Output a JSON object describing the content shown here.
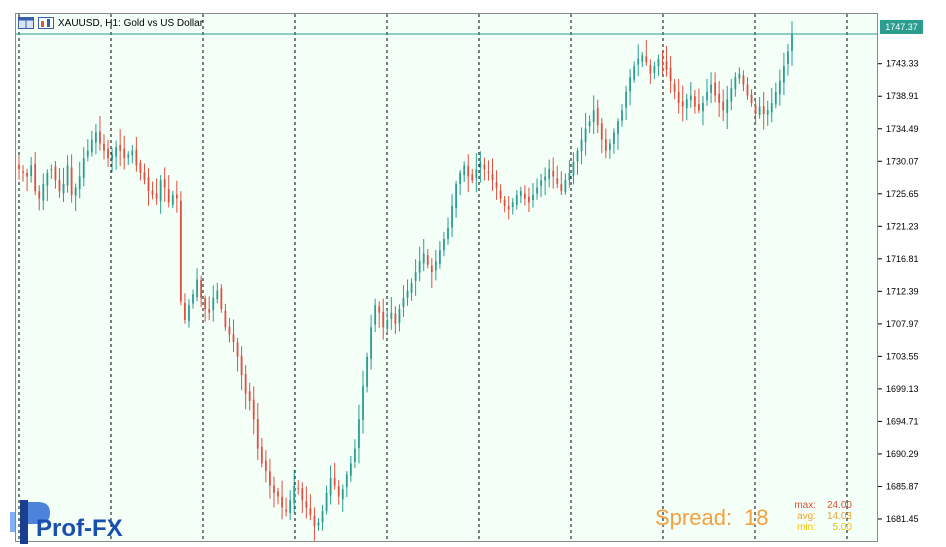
{
  "window": {
    "title": "XAUUSD, H1:  Gold vs US Dollar"
  },
  "colors": {
    "background": "#f4fff8",
    "bull_candle": "#2a9d8f",
    "bear_candle": "#e05040",
    "grid_divider": "#000000",
    "spread_text": "#f2a040",
    "stat_max": "#e05030",
    "stat_avg": "#f0a030",
    "stat_min": "#f0c000"
  },
  "price_scale": {
    "current_price": "1747.37",
    "labels": [
      "1743.33",
      "1738.91",
      "1734.49",
      "1730.07",
      "1725.65",
      "1721.23",
      "1716.81",
      "1712.39",
      "1707.97",
      "1703.55",
      "1699.13",
      "1694.71",
      "1690.29",
      "1685.87",
      "1681.45"
    ]
  },
  "spread": {
    "label": "Spread:",
    "value": "18"
  },
  "stats": {
    "max_label": "max:",
    "max_value": "24.00",
    "avg_label": "avg:",
    "avg_value": "14.03",
    "min_label": "min:",
    "min_value": "5.00"
  },
  "logo": {
    "text": "Prof-FX"
  },
  "chart_data": {
    "type": "candlestick",
    "symbol": "XAUUSD",
    "timeframe": "H1",
    "ylim": [
      1679.0,
      1749.0
    ],
    "y_ticks": [
      1743.33,
      1738.91,
      1734.49,
      1730.07,
      1725.65,
      1721.23,
      1716.81,
      1712.39,
      1707.97,
      1703.55,
      1699.13,
      1694.71,
      1690.29,
      1685.87,
      1681.45
    ],
    "current_price": 1747.37,
    "close_path": [
      1729.0,
      1728.5,
      1728.0,
      1729.5,
      1726.0,
      1725.0,
      1727.0,
      1728.5,
      1729.0,
      1727.5,
      1726.0,
      1727.0,
      1729.5,
      1725.5,
      1726.5,
      1728.0,
      1730.5,
      1731.5,
      1733.0,
      1734.0,
      1732.5,
      1731.5,
      1730.5,
      1731.0,
      1732.0,
      1731.5,
      1730.5,
      1731.0,
      1731.5,
      1729.5,
      1728.5,
      1727.5,
      1726.0,
      1725.5,
      1725.0,
      1727.5,
      1726.5,
      1724.5,
      1725.5,
      1725.0,
      1711.0,
      1708.5,
      1710.5,
      1712.0,
      1714.0,
      1711.5,
      1710.0,
      1709.5,
      1711.5,
      1712.5,
      1710.0,
      1707.5,
      1706.5,
      1705.5,
      1703.5,
      1701.0,
      1698.5,
      1697.5,
      1695.0,
      1691.0,
      1689.0,
      1688.0,
      1686.0,
      1685.0,
      1684.5,
      1683.0,
      1682.5,
      1684.0,
      1686.0,
      1685.5,
      1684.0,
      1683.0,
      1682.0,
      1680.5,
      1681.0,
      1682.5,
      1685.0,
      1687.0,
      1686.0,
      1684.5,
      1685.5,
      1687.5,
      1689.0,
      1691.0,
      1695.0,
      1699.5,
      1703.5,
      1707.5,
      1710.5,
      1709.5,
      1707.5,
      1708.5,
      1709.5,
      1708.0,
      1710.0,
      1711.5,
      1712.5,
      1713.5,
      1715.0,
      1716.5,
      1717.5,
      1716.0,
      1715.0,
      1716.5,
      1718.0,
      1719.5,
      1721.0,
      1724.0,
      1727.0,
      1728.5,
      1729.5,
      1728.0,
      1727.5,
      1729.0,
      1730.0,
      1729.0,
      1728.5,
      1727.5,
      1726.5,
      1725.0,
      1724.0,
      1723.5,
      1724.5,
      1725.5,
      1726.0,
      1725.0,
      1724.5,
      1725.5,
      1726.5,
      1727.5,
      1728.0,
      1729.0,
      1728.0,
      1727.0,
      1726.0,
      1727.5,
      1728.5,
      1730.0,
      1731.5,
      1733.0,
      1734.5,
      1735.5,
      1737.0,
      1735.0,
      1733.0,
      1731.5,
      1732.5,
      1734.0,
      1735.5,
      1737.0,
      1739.5,
      1741.5,
      1743.0,
      1744.0,
      1744.5,
      1743.5,
      1742.0,
      1743.0,
      1744.0,
      1743.5,
      1742.5,
      1741.0,
      1739.5,
      1738.0,
      1737.5,
      1738.5,
      1739.0,
      1737.5,
      1737.0,
      1738.0,
      1739.5,
      1740.5,
      1739.0,
      1738.0,
      1737.0,
      1738.5,
      1740.0,
      1741.5,
      1742.0,
      1740.5,
      1739.0,
      1738.0,
      1736.5,
      1737.5,
      1736.5,
      1737.0,
      1738.0,
      1739.5,
      1741.0,
      1743.0,
      1745.0,
      1747.37
    ]
  }
}
